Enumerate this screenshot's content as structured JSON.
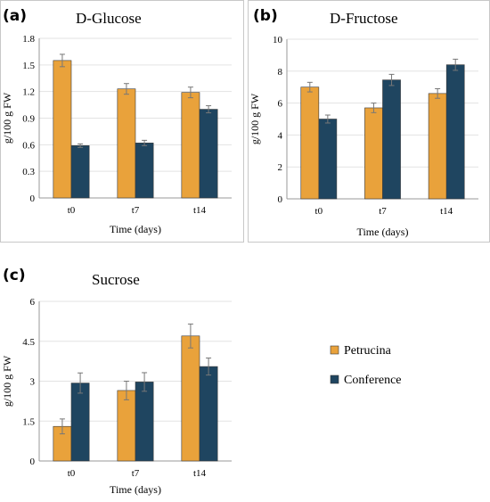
{
  "colors": {
    "petrucina": "#E9A23B",
    "conference": "#1F4560"
  },
  "legend": {
    "items": [
      {
        "label": "Petrucina",
        "color": "#E9A23B"
      },
      {
        "label": "Conference",
        "color": "#1F4560"
      }
    ]
  },
  "chart_data": [
    {
      "type": "bar",
      "panel_label": "(a)",
      "title": "D-Glucose",
      "xlabel": "Time (days)",
      "ylabel": "g/100 g FW",
      "categories": [
        "t0",
        "t7",
        "t14"
      ],
      "ylim": [
        0,
        1.8
      ],
      "yticks": [
        "0",
        "0.3",
        "0.6",
        "0.9",
        "1.2",
        "1.5",
        "1.8"
      ],
      "grid": true,
      "series": [
        {
          "name": "Petrucina",
          "values": [
            1.55,
            1.23,
            1.19
          ],
          "errors": [
            0.07,
            0.06,
            0.06
          ]
        },
        {
          "name": "Conference",
          "values": [
            0.59,
            0.62,
            1.0
          ],
          "errors": [
            0.02,
            0.03,
            0.04
          ]
        }
      ]
    },
    {
      "type": "bar",
      "panel_label": "(b)",
      "title": "D-Fructose",
      "xlabel": "Time (days)",
      "ylabel": "g/100 g FW",
      "categories": [
        "t0",
        "t7",
        "t14"
      ],
      "ylim": [
        0,
        10
      ],
      "yticks": [
        "0",
        "2",
        "4",
        "6",
        "8",
        "10"
      ],
      "grid": true,
      "series": [
        {
          "name": "Petrucina",
          "values": [
            7.0,
            5.7,
            6.6
          ],
          "errors": [
            0.3,
            0.3,
            0.3
          ]
        },
        {
          "name": "Conference",
          "values": [
            5.0,
            7.45,
            8.4
          ],
          "errors": [
            0.25,
            0.35,
            0.35
          ]
        }
      ]
    },
    {
      "type": "bar",
      "panel_label": "(c)",
      "title": "Sucrose",
      "xlabel": "Time (days)",
      "ylabel": "g/100 g FW",
      "categories": [
        "t0",
        "t7",
        "t14"
      ],
      "ylim": [
        0,
        6
      ],
      "yticks": [
        "0",
        "1.5",
        "3",
        "4.5",
        "6"
      ],
      "grid": true,
      "series": [
        {
          "name": "Petrucina",
          "values": [
            1.3,
            2.65,
            4.7
          ],
          "errors": [
            0.28,
            0.35,
            0.45
          ]
        },
        {
          "name": "Conference",
          "values": [
            2.93,
            2.97,
            3.55
          ],
          "errors": [
            0.38,
            0.35,
            0.32
          ]
        }
      ]
    }
  ]
}
